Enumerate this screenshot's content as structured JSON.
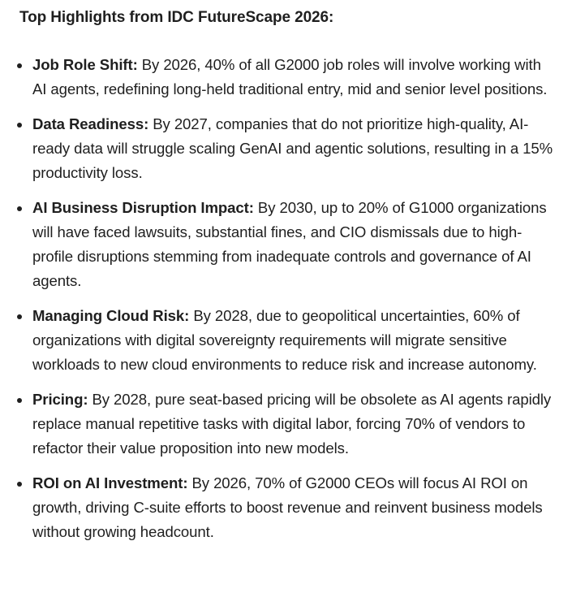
{
  "title": "Top Highlights from IDC FutureScape 2026:",
  "highlights": [
    {
      "label": "Job Role Shift:",
      "text": " By 2026, 40% of all G2000 job roles will involve working with AI agents, redefining long-held traditional entry, mid and senior level positions."
    },
    {
      "label": "Data Readiness:",
      "text": " By 2027, companies that do not prioritize high-quality, AI-ready data will struggle scaling GenAI and agentic solutions, resulting in a 15% productivity loss."
    },
    {
      "label": "AI Business Disruption Impact:",
      "text": " By 2030, up to 20% of G1000 organizations will have faced lawsuits, substantial fines, and CIO dismissals due to high-profile disruptions stemming from inadequate controls and governance of AI agents."
    },
    {
      "label": "Managing Cloud Risk:",
      "text": " By 2028, due to geopolitical uncertainties, 60% of organizations with digital sovereignty requirements will migrate sensitive workloads to new cloud environments to reduce risk and increase autonomy."
    },
    {
      "label": "Pricing:",
      "text": " By 2028, pure seat-based pricing will be obsolete as AI agents rapidly replace manual repetitive tasks with digital labor, forcing 70% of vendors to refactor their value proposition into new models."
    },
    {
      "label": "ROI on AI Investment:",
      "text": " By 2026, 70% of G2000 CEOs will focus AI ROI on growth, driving C-suite efforts to boost revenue and reinvent business models without growing headcount."
    }
  ]
}
